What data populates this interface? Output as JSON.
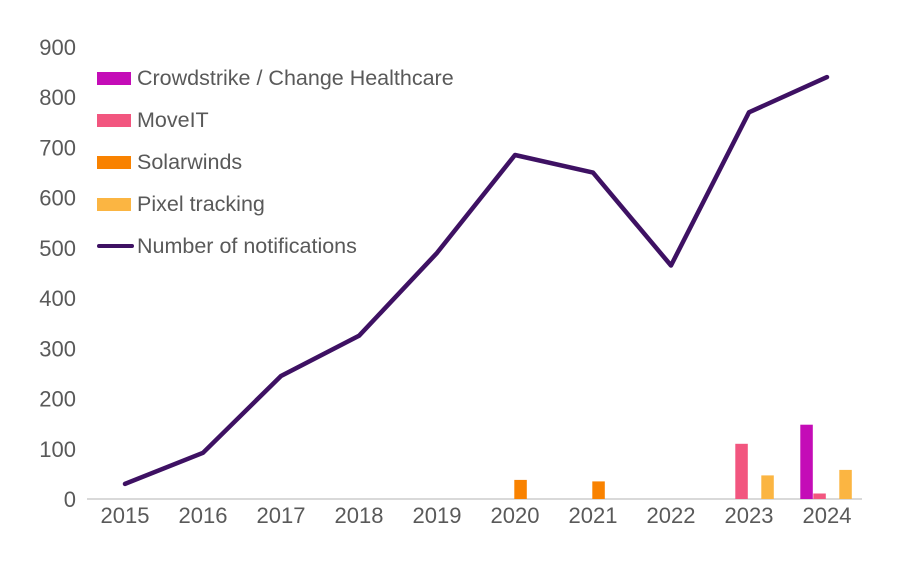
{
  "colors": {
    "crowdstrike": "#C40CB7",
    "moveit": "#F2567F",
    "solarwinds": "#F98200",
    "pixel_tracking": "#FBB542",
    "notifications_line": "#3E1163",
    "text": "#595959",
    "axis_line": "#D9D9D9"
  },
  "chart_data": {
    "type": "bar+line combo",
    "categories": [
      "2015",
      "2016",
      "2017",
      "2018",
      "2019",
      "2020",
      "2021",
      "2022",
      "2023",
      "2024"
    ],
    "bar_series": [
      {
        "name": "Crowdstrike / Change Healthcare",
        "color_key": "crowdstrike",
        "values": [
          0,
          0,
          0,
          0,
          0,
          0,
          0,
          0,
          0,
          148
        ]
      },
      {
        "name": "MoveIT",
        "color_key": "moveit",
        "values": [
          0,
          0,
          0,
          0,
          0,
          0,
          0,
          0,
          110,
          11
        ]
      },
      {
        "name": "Solarwinds",
        "color_key": "solarwinds",
        "values": [
          0,
          0,
          0,
          0,
          0,
          38,
          35,
          0,
          0,
          0
        ]
      },
      {
        "name": "Pixel tracking",
        "color_key": "pixel_tracking",
        "values": [
          0,
          0,
          0,
          0,
          0,
          0,
          0,
          0,
          47,
          58
        ]
      }
    ],
    "line_series": {
      "name": "Number of notifications",
      "color_key": "notifications_line",
      "values": [
        30,
        92,
        245,
        325,
        490,
        685,
        650,
        465,
        770,
        840
      ]
    },
    "y_axis": {
      "min": 0,
      "max": 900,
      "step": 100,
      "tick_labels": [
        "0",
        "100",
        "200",
        "300",
        "400",
        "500",
        "600",
        "700",
        "800",
        "900"
      ]
    },
    "grid": false,
    "legend_position": "top-left",
    "title": ""
  }
}
